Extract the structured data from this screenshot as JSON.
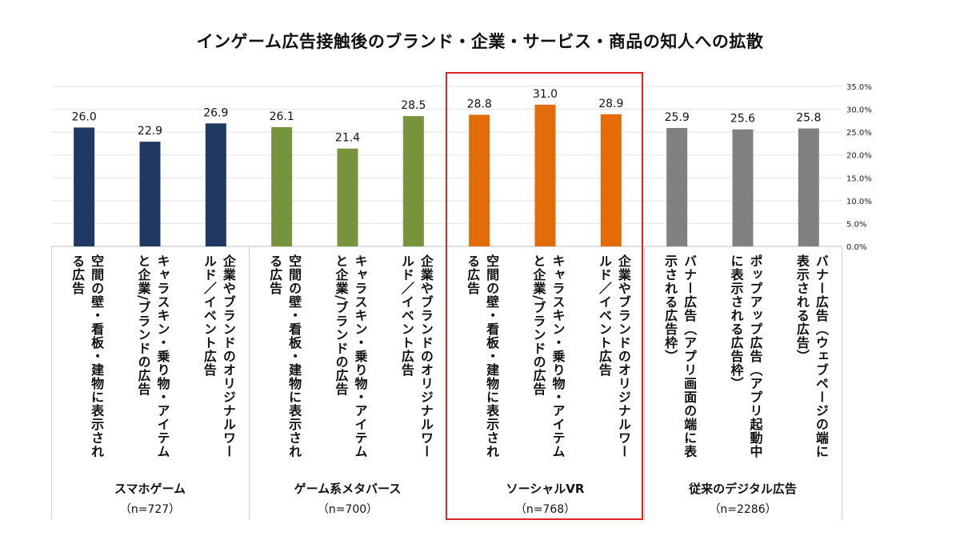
{
  "chart_data": {
    "type": "bar",
    "title": "インゲーム広告接触後のブランド・企業・サービス・商品の知人への拡散",
    "ylim": [
      0,
      35
    ],
    "yticks": [
      "0.0%",
      "5.0%",
      "10.0%",
      "15.0%",
      "20.0%",
      "25.0%",
      "30.0%",
      "35.0%"
    ],
    "y_axis_side": "right",
    "grid": true,
    "groups": [
      {
        "name": "スマホゲーム",
        "n": "（n=727）",
        "color": "#1f3864",
        "categories": [
          "空間の壁・看板・建物に表示される広告",
          "キャラスキン・乗り物・アイテムと企業/ブランドの広告",
          "企業やブランドのオリジナルワールド／イベント広告"
        ],
        "values": [
          26.0,
          22.9,
          26.9
        ],
        "labels": [
          "26.0",
          "22.9",
          "26.9"
        ]
      },
      {
        "name": "ゲーム系メタバース",
        "n": "（n=700）",
        "color": "#77933c",
        "categories": [
          "空間の壁・看板・建物に表示される広告",
          "キャラスキン・乗り物・アイテムと企業/ブランドの広告",
          "企業やブランドのオリジナルワールド／イベント広告"
        ],
        "values": [
          26.1,
          21.4,
          28.5
        ],
        "labels": [
          "26.1",
          "21.4",
          "28.5"
        ]
      },
      {
        "name": "ソーシャルVR",
        "n": "（n=768）",
        "color": "#e36c09",
        "categories": [
          "空間の壁・看板・建物に表示される広告",
          "キャラスキン・乗り物・アイテムと企業/ブランドの広告",
          "企業やブランドのオリジナルワールド／イベント広告"
        ],
        "values": [
          28.8,
          31.0,
          28.9
        ],
        "labels": [
          "28.8",
          "31.0",
          "28.9"
        ],
        "highlighted": true,
        "highlight_color": "#e02424"
      },
      {
        "name": "従来のデジタル広告",
        "n": "（n=2286）",
        "color": "#808080",
        "categories": [
          "バナー広告（アプリ画面の端に表示される広告枠）",
          "ポップアップ広告（アプリ起動中に表示される広告枠）",
          "バナー広告（ウェブページの端に表示される広告）"
        ],
        "values": [
          25.9,
          25.6,
          25.8
        ],
        "labels": [
          "25.9",
          "25.6",
          "25.8"
        ]
      }
    ]
  }
}
